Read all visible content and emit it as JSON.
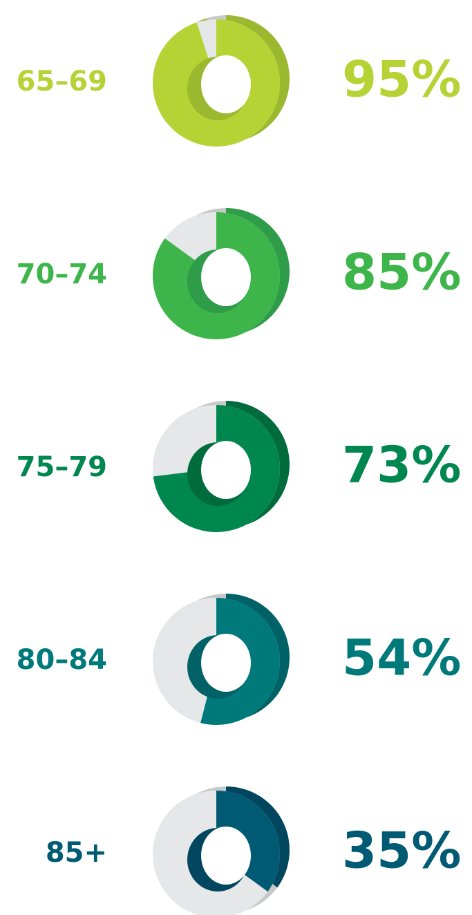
{
  "chart_data": [
    {
      "type": "donut",
      "title": "65–69",
      "values": [
        95
      ],
      "value_labels": [
        "95%"
      ],
      "color": "#b5d334",
      "shade": "#9bb82e"
    },
    {
      "type": "donut",
      "title": "70–74",
      "values": [
        85
      ],
      "value_labels": [
        "85%"
      ],
      "color": "#3db54a",
      "shade": "#2e9c48"
    },
    {
      "type": "donut",
      "title": "75–79",
      "values": [
        73
      ],
      "value_labels": [
        "73%"
      ],
      "color": "#00874f",
      "shade": "#006b3d"
    },
    {
      "type": "donut",
      "title": "80–84",
      "values": [
        54
      ],
      "value_labels": [
        "54%"
      ],
      "color": "#00797a",
      "shade": "#006266"
    },
    {
      "type": "donut",
      "title": "85+",
      "values": [
        35
      ],
      "value_labels": [
        "35%"
      ],
      "color": "#005a73",
      "shade": "#00465f"
    }
  ]
}
